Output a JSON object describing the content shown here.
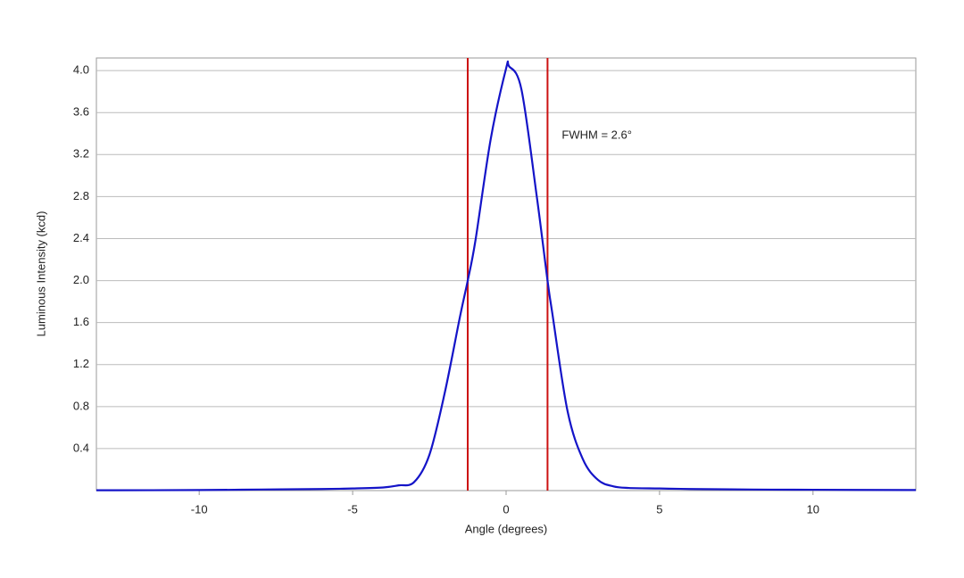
{
  "chart_data": {
    "type": "line",
    "x_label": "Angle (degrees)",
    "y_label": "Luminous Intensity (kcd)",
    "annotation": "FWHM = 2.6°",
    "xlim": [
      -13.35,
      13.35
    ],
    "ylim": [
      0,
      4.12
    ],
    "xticks": [
      -10,
      -5,
      0,
      5,
      10
    ],
    "yticks": [
      0.4,
      0.8,
      1.2,
      1.6,
      {
        "value": 2,
        "label": "2.0"
      },
      2.4,
      2.8,
      3.2,
      3.6,
      {
        "value": 4,
        "label": "4.0"
      }
    ],
    "grid": true,
    "x": [
      -13.35,
      -10,
      -8,
      -6,
      -5,
      -4,
      -3.5,
      -3,
      -2.5,
      -2,
      -1.5,
      -1.25,
      -1,
      -0.5,
      0,
      0.1,
      0.5,
      1,
      1.35,
      1.5,
      2,
      2.5,
      3,
      3.5,
      4,
      5,
      6,
      8,
      10,
      13.35
    ],
    "series": [
      {
        "color": "#1414c8",
        "values": [
          0.003,
          0.005,
          0.01,
          0.015,
          0.02,
          0.03,
          0.05,
          0.08,
          0.34,
          0.93,
          1.66,
          2.0,
          2.38,
          3.35,
          4.02,
          4.04,
          3.82,
          2.8,
          2.0,
          1.7,
          0.76,
          0.3,
          0.1,
          0.04,
          0.025,
          0.02,
          0.015,
          0.01,
          0.008,
          0.005
        ]
      }
    ],
    "vlines": {
      "color": "#cc1111",
      "values": [
        -1.25,
        1.35
      ]
    }
  }
}
